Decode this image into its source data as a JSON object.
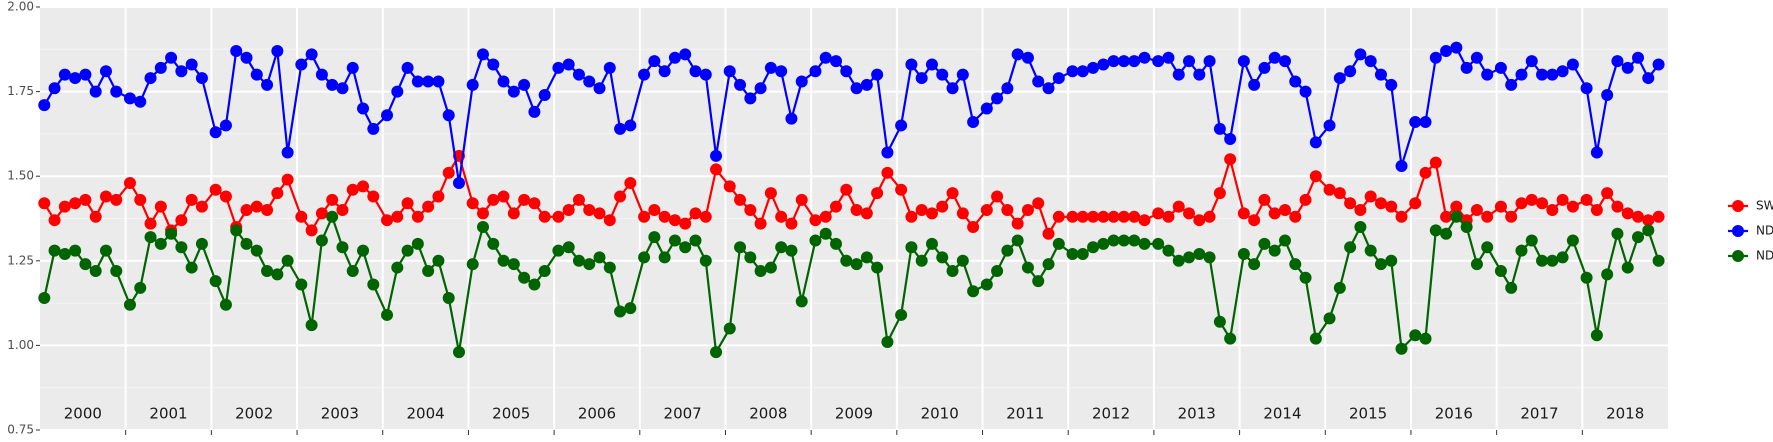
{
  "chart_data": {
    "type": "line",
    "x": [
      2000.05,
      2000.17,
      2000.29,
      2000.41,
      2000.53,
      2000.65,
      2000.77,
      2000.89,
      2001.05,
      2001.17,
      2001.29,
      2001.41,
      2001.53,
      2001.65,
      2001.77,
      2001.89,
      2002.05,
      2002.17,
      2002.29,
      2002.41,
      2002.53,
      2002.65,
      2002.77,
      2002.89,
      2003.05,
      2003.17,
      2003.29,
      2003.41,
      2003.53,
      2003.65,
      2003.77,
      2003.89,
      2004.05,
      2004.17,
      2004.29,
      2004.41,
      2004.53,
      2004.65,
      2004.77,
      2004.89,
      2005.05,
      2005.17,
      2005.29,
      2005.41,
      2005.53,
      2005.65,
      2005.77,
      2005.89,
      2006.05,
      2006.17,
      2006.29,
      2006.41,
      2006.53,
      2006.65,
      2006.77,
      2006.89,
      2007.05,
      2007.17,
      2007.29,
      2007.41,
      2007.53,
      2007.65,
      2007.77,
      2007.89,
      2008.05,
      2008.17,
      2008.29,
      2008.41,
      2008.53,
      2008.65,
      2008.77,
      2008.89,
      2009.05,
      2009.17,
      2009.29,
      2009.41,
      2009.53,
      2009.65,
      2009.77,
      2009.89,
      2010.05,
      2010.17,
      2010.29,
      2010.41,
      2010.53,
      2010.65,
      2010.77,
      2010.89,
      2011.05,
      2011.17,
      2011.29,
      2011.41,
      2011.53,
      2011.65,
      2011.77,
      2011.89,
      2012.05,
      2012.17,
      2012.29,
      2012.41,
      2012.53,
      2012.65,
      2012.77,
      2012.89,
      2013.05,
      2013.17,
      2013.29,
      2013.41,
      2013.53,
      2013.65,
      2013.77,
      2013.89,
      2014.05,
      2014.17,
      2014.29,
      2014.41,
      2014.53,
      2014.65,
      2014.77,
      2014.89,
      2015.05,
      2015.17,
      2015.29,
      2015.41,
      2015.53,
      2015.65,
      2015.77,
      2015.89,
      2016.05,
      2016.17,
      2016.29,
      2016.41,
      2016.53,
      2016.65,
      2016.77,
      2016.89,
      2017.05,
      2017.17,
      2017.29,
      2017.41,
      2017.53,
      2017.65,
      2017.77,
      2017.89,
      2018.05,
      2018.17,
      2018.29,
      2018.41,
      2018.53,
      2018.65,
      2018.77,
      2018.89
    ],
    "series": [
      {
        "name": "SWIR",
        "color": "#ff0000",
        "values": [
          1.42,
          1.37,
          1.41,
          1.42,
          1.43,
          1.38,
          1.44,
          1.43,
          1.48,
          1.43,
          1.36,
          1.41,
          1.34,
          1.37,
          1.43,
          1.41,
          1.46,
          1.44,
          1.35,
          1.4,
          1.41,
          1.4,
          1.45,
          1.49,
          1.38,
          1.34,
          1.39,
          1.43,
          1.4,
          1.46,
          1.47,
          1.44,
          1.37,
          1.38,
          1.42,
          1.38,
          1.41,
          1.44,
          1.51,
          1.56,
          1.42,
          1.39,
          1.43,
          1.44,
          1.39,
          1.43,
          1.42,
          1.38,
          1.38,
          1.4,
          1.43,
          1.4,
          1.39,
          1.37,
          1.44,
          1.48,
          1.38,
          1.4,
          1.38,
          1.37,
          1.36,
          1.39,
          1.38,
          1.52,
          1.47,
          1.43,
          1.4,
          1.36,
          1.45,
          1.38,
          1.36,
          1.43,
          1.37,
          1.38,
          1.41,
          1.46,
          1.4,
          1.39,
          1.45,
          1.51,
          1.46,
          1.38,
          1.4,
          1.39,
          1.41,
          1.45,
          1.39,
          1.35,
          1.4,
          1.44,
          1.4,
          1.36,
          1.4,
          1.42,
          1.33,
          1.38,
          1.38,
          1.38,
          1.38,
          1.38,
          1.38,
          1.38,
          1.38,
          1.37,
          1.39,
          1.38,
          1.41,
          1.39,
          1.37,
          1.38,
          1.45,
          1.55,
          1.39,
          1.37,
          1.43,
          1.39,
          1.4,
          1.38,
          1.43,
          1.5,
          1.46,
          1.45,
          1.42,
          1.4,
          1.44,
          1.42,
          1.41,
          1.38,
          1.42,
          1.51,
          1.54,
          1.38,
          1.41,
          1.37,
          1.4,
          1.38,
          1.41,
          1.38,
          1.42,
          1.43,
          1.42,
          1.4,
          1.43,
          1.41,
          1.43,
          1.4,
          1.45,
          1.41,
          1.39,
          1.38,
          1.37,
          1.38
        ]
      },
      {
        "name": "NDVI",
        "color": "#0000ff",
        "values": [
          1.71,
          1.76,
          1.8,
          1.79,
          1.8,
          1.75,
          1.81,
          1.75,
          1.73,
          1.72,
          1.79,
          1.82,
          1.85,
          1.81,
          1.83,
          1.79,
          1.63,
          1.65,
          1.87,
          1.85,
          1.8,
          1.77,
          1.87,
          1.57,
          1.83,
          1.86,
          1.8,
          1.77,
          1.76,
          1.82,
          1.7,
          1.64,
          1.68,
          1.75,
          1.82,
          1.78,
          1.78,
          1.78,
          1.68,
          1.48,
          1.77,
          1.86,
          1.83,
          1.78,
          1.75,
          1.77,
          1.69,
          1.74,
          1.82,
          1.83,
          1.8,
          1.78,
          1.76,
          1.82,
          1.64,
          1.65,
          1.8,
          1.84,
          1.81,
          1.85,
          1.86,
          1.81,
          1.8,
          1.56,
          1.81,
          1.77,
          1.73,
          1.76,
          1.82,
          1.81,
          1.67,
          1.78,
          1.81,
          1.85,
          1.84,
          1.81,
          1.76,
          1.77,
          1.8,
          1.57,
          1.65,
          1.83,
          1.79,
          1.83,
          1.8,
          1.76,
          1.8,
          1.66,
          1.7,
          1.73,
          1.76,
          1.86,
          1.85,
          1.78,
          1.76,
          1.79,
          1.81,
          1.81,
          1.82,
          1.83,
          1.84,
          1.84,
          1.84,
          1.85,
          1.84,
          1.85,
          1.8,
          1.84,
          1.8,
          1.84,
          1.64,
          1.61,
          1.84,
          1.77,
          1.82,
          1.85,
          1.84,
          1.78,
          1.75,
          1.6,
          1.65,
          1.79,
          1.81,
          1.86,
          1.84,
          1.8,
          1.77,
          1.53,
          1.66,
          1.66,
          1.85,
          1.87,
          1.88,
          1.82,
          1.85,
          1.8,
          1.82,
          1.77,
          1.8,
          1.84,
          1.8,
          1.8,
          1.81,
          1.83,
          1.76,
          1.57,
          1.74,
          1.84,
          1.82,
          1.85,
          1.79,
          1.83
        ]
      },
      {
        "name": "NDWI",
        "color": "#006400",
        "values": [
          1.14,
          1.28,
          1.27,
          1.28,
          1.24,
          1.22,
          1.28,
          1.22,
          1.12,
          1.17,
          1.32,
          1.3,
          1.33,
          1.29,
          1.23,
          1.3,
          1.19,
          1.12,
          1.34,
          1.3,
          1.28,
          1.22,
          1.21,
          1.25,
          1.18,
          1.06,
          1.31,
          1.38,
          1.29,
          1.22,
          1.28,
          1.18,
          1.09,
          1.23,
          1.28,
          1.3,
          1.22,
          1.25,
          1.14,
          0.98,
          1.24,
          1.35,
          1.3,
          1.25,
          1.24,
          1.2,
          1.18,
          1.22,
          1.28,
          1.29,
          1.25,
          1.24,
          1.26,
          1.23,
          1.1,
          1.11,
          1.26,
          1.32,
          1.26,
          1.31,
          1.29,
          1.31,
          1.25,
          0.98,
          1.05,
          1.29,
          1.26,
          1.22,
          1.23,
          1.29,
          1.28,
          1.13,
          1.31,
          1.33,
          1.3,
          1.25,
          1.24,
          1.26,
          1.23,
          1.01,
          1.09,
          1.29,
          1.25,
          1.3,
          1.26,
          1.22,
          1.25,
          1.16,
          1.18,
          1.22,
          1.28,
          1.31,
          1.23,
          1.19,
          1.24,
          1.3,
          1.27,
          1.27,
          1.29,
          1.3,
          1.31,
          1.31,
          1.31,
          1.3,
          1.3,
          1.28,
          1.25,
          1.26,
          1.27,
          1.26,
          1.07,
          1.02,
          1.27,
          1.24,
          1.3,
          1.28,
          1.31,
          1.24,
          1.2,
          1.02,
          1.08,
          1.17,
          1.29,
          1.35,
          1.28,
          1.24,
          1.25,
          0.99,
          1.03,
          1.02,
          1.34,
          1.33,
          1.38,
          1.35,
          1.24,
          1.29,
          1.22,
          1.17,
          1.28,
          1.31,
          1.25,
          1.25,
          1.26,
          1.31,
          1.2,
          1.03,
          1.21,
          1.33,
          1.23,
          1.32,
          1.34,
          1.25
        ]
      }
    ],
    "xlim": [
      2000,
      2019
    ],
    "xticks": [
      2001,
      2002,
      2003,
      2004,
      2005,
      2006,
      2007,
      2008,
      2009,
      2010,
      2011,
      2012,
      2013,
      2014,
      2015,
      2016,
      2017,
      2018
    ],
    "year_labels": [
      {
        "value": 2000.5,
        "label": "2000"
      },
      {
        "value": 2001.5,
        "label": "2001"
      },
      {
        "value": 2002.5,
        "label": "2002"
      },
      {
        "value": 2003.5,
        "label": "2003"
      },
      {
        "value": 2004.5,
        "label": "2004"
      },
      {
        "value": 2005.5,
        "label": "2005"
      },
      {
        "value": 2006.5,
        "label": "2006"
      },
      {
        "value": 2007.5,
        "label": "2007"
      },
      {
        "value": 2008.5,
        "label": "2008"
      },
      {
        "value": 2009.5,
        "label": "2009"
      },
      {
        "value": 2010.5,
        "label": "2010"
      },
      {
        "value": 2011.5,
        "label": "2011"
      },
      {
        "value": 2012.5,
        "label": "2012"
      },
      {
        "value": 2013.5,
        "label": "2013"
      },
      {
        "value": 2014.5,
        "label": "2014"
      },
      {
        "value": 2015.5,
        "label": "2015"
      },
      {
        "value": 2016.5,
        "label": "2016"
      },
      {
        "value": 2017.5,
        "label": "2017"
      },
      {
        "value": 2018.5,
        "label": "2018"
      }
    ],
    "ylim": [
      0.75,
      2.0
    ],
    "yticks": [
      {
        "value": 0.75,
        "label": "0.75"
      },
      {
        "value": 1.0,
        "label": "1.00"
      },
      {
        "value": 1.25,
        "label": "1.25"
      },
      {
        "value": 1.5,
        "label": "1.50"
      },
      {
        "value": 1.75,
        "label": "1.75"
      },
      {
        "value": 2.0,
        "label": "2.00"
      }
    ],
    "grid": true,
    "legend": "right"
  }
}
